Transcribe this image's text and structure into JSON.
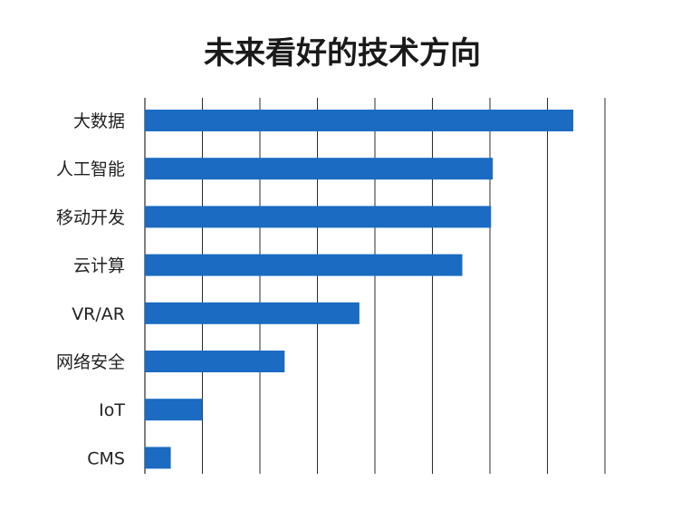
{
  "chart_data": {
    "type": "bar",
    "orientation": "horizontal",
    "title": "未来看好的技术方向",
    "categories": [
      "大数据",
      "人工智能",
      "移动开发",
      "云计算",
      "VR/AR",
      "网络安全",
      "IoT",
      "CMS"
    ],
    "values": [
      7.45,
      6.05,
      6.02,
      5.52,
      3.73,
      2.43,
      1.0,
      0.45
    ],
    "xlim": [
      0,
      8
    ],
    "grid": true,
    "xtick_labels_shown": false,
    "bar_color": "#1a6bc1"
  }
}
